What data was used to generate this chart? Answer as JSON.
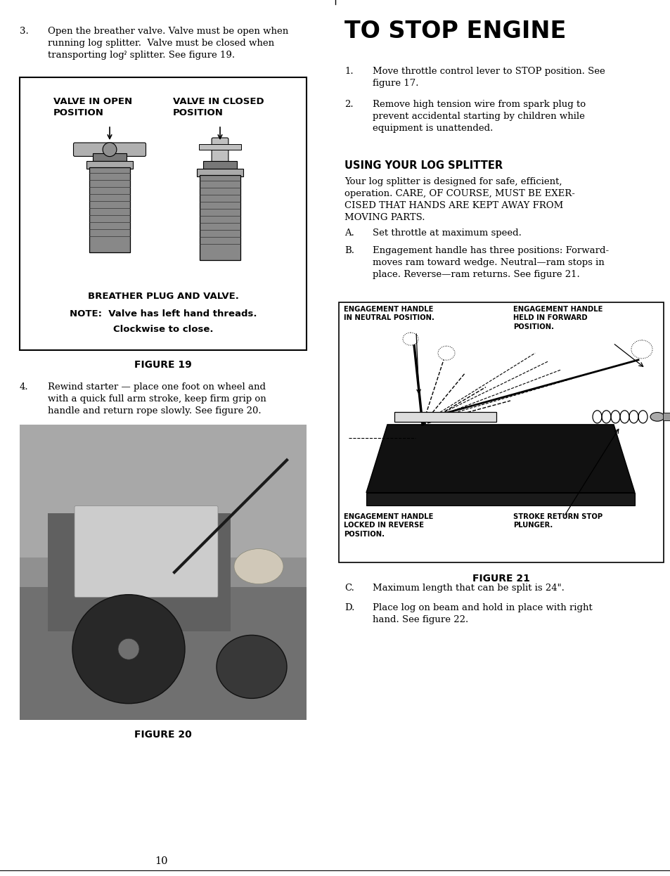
{
  "bg_color": "#ffffff",
  "page_width": 9.54,
  "page_height": 12.46,
  "item3_lines": [
    "Open the breather valve. Valve must be open when",
    "running log splitter.  Valve must be closed when",
    "transporting logˀ splitter. See figure 19."
  ],
  "figure19_caption": "FIGURE 19",
  "figure19_label1": "VALVE IN OPEN\nPOSITION",
  "figure19_label2": "VALVE IN CLOSED\nPOSITION",
  "figure19_bottom1": "BREATHER PLUG AND VALVE.",
  "figure19_note1": "NOTE:  Valve has left hand threads.",
  "figure19_note2": "Clockwise to close.",
  "item4_lines": [
    "Rewind starter — place one foot on wheel and",
    "with a quick full arm stroke, keep firm grip on",
    "handle and return rope slowly. See figure 20."
  ],
  "figure20_caption": "FIGURE 20",
  "stop_engine_title": "TO STOP ENGINE",
  "stop1_lines": [
    "Move throttle control lever to STOP position. See",
    "figure 17."
  ],
  "stop2_lines": [
    "Remove high tension wire from spark plug to",
    "prevent accidental starting by children while",
    "equipment is unattended."
  ],
  "using_title": "USING YOUR LOG SPLITTER",
  "using_lines": [
    "Your log splitter is designed for safe, efficient,",
    "operation. CARE, OF COURSE, MUST BE EXER-",
    "CISED THAT HANDS ARE KEPT AWAY FROM",
    "MOVING PARTS."
  ],
  "stepA_label": "A.",
  "stepA_text": "Set throttle at maximum speed.",
  "stepB_label": "B.",
  "stepB_lines": [
    "Engagement handle has three positions: Forward-",
    "moves ram toward wedge. Neutral—ram stops in",
    "place. Reverse—ram returns. See figure 21."
  ],
  "fig21_tl": "ENGAGEMENT HANDLE\nIN NEUTRAL POSITION.",
  "fig21_tr": "ENGAGEMENT HANDLE\nHELD IN FORWARD\nPOSITION.",
  "fig21_bl": "ENGAGEMENT HANDLE\nLOCKED IN REVERSE\nPOSITION.",
  "fig21_br": "STROKE RETURN STOP\nPLUNGER.",
  "figure21_caption": "FIGURE 21",
  "stepC_label": "C.",
  "stepC_text": "Maximum length that can be split is 24\".",
  "stepD_label": "D.",
  "stepD_lines": [
    "Place log on beam and hold in place with right",
    "hand. See figure 22."
  ],
  "page_number": "10"
}
